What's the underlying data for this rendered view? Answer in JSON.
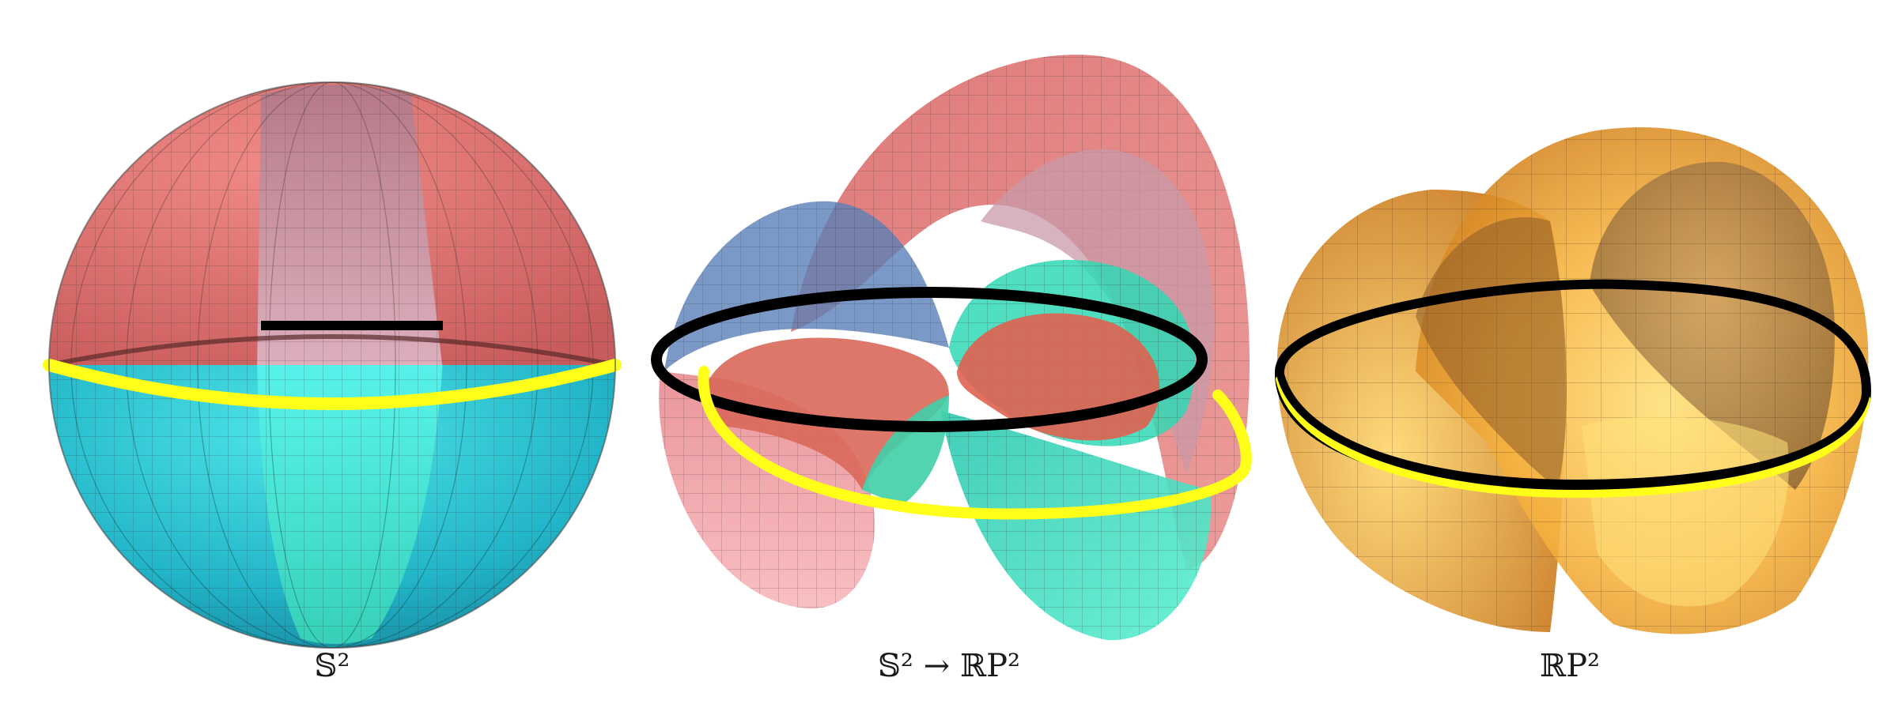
{
  "panels": [
    {
      "id": "sphere",
      "caption": "𝕊²",
      "colors": {
        "upper": "#e27a7a",
        "upper_band": "#caa0b0",
        "lower": "#2fc7d6",
        "lower_band": "#52ecd2",
        "equator_front": "#ffff1a",
        "equator_back": "#000000"
      }
    },
    {
      "id": "map",
      "caption": "𝕊² → ℝP²",
      "colors": {
        "red": "#e06e6e",
        "pink": "#f4a5a8",
        "teal": "#3fe0c0",
        "blue": "#6a84c0",
        "loop_black": "#000000",
        "loop_yellow": "#ffff1a"
      }
    },
    {
      "id": "projective-plane",
      "caption": "ℝP²",
      "colors": {
        "surface_dark": "#d98a22",
        "surface_light": "#ffcf5c",
        "inner": "#a07848",
        "loop_black": "#000000",
        "loop_yellow": "#ffff1a"
      }
    }
  ]
}
